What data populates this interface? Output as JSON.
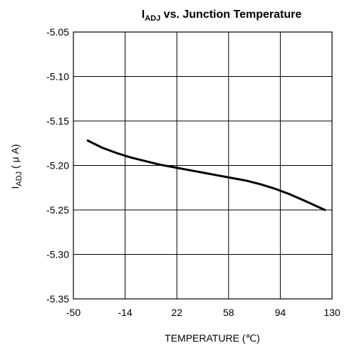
{
  "chart_data": {
    "type": "line",
    "title": {
      "main": "I",
      "subscript": "ADJ",
      "rest": " vs. Junction Temperature"
    },
    "xlabel": "TEMPERATURE (℃)",
    "ylabel": {
      "main": "I",
      "subscript": "ADJ",
      "rest": " ( μ A)"
    },
    "xlim": [
      -50,
      130
    ],
    "ylim": [
      -5.35,
      -5.05
    ],
    "x_ticks": [
      -50,
      -14,
      22,
      58,
      94,
      130
    ],
    "y_ticks": [
      -5.05,
      -5.1,
      -5.15,
      -5.2,
      -5.25,
      -5.3,
      -5.35
    ],
    "x_tick_labels": [
      "-50",
      "-14",
      "22",
      "58",
      "94",
      "130"
    ],
    "y_tick_labels": [
      "-5.05",
      "-5.10",
      "-5.15",
      "-5.20",
      "-5.25",
      "-5.30",
      "-5.35"
    ],
    "grid": true,
    "series": [
      {
        "x": [
          -40,
          -30,
          -20,
          -10,
          0,
          10,
          20,
          30,
          40,
          50,
          60,
          70,
          80,
          90,
          100,
          110,
          125
        ],
        "values": [
          -5.172,
          -5.18,
          -5.186,
          -5.191,
          -5.195,
          -5.199,
          -5.202,
          -5.205,
          -5.208,
          -5.211,
          -5.214,
          -5.217,
          -5.221,
          -5.226,
          -5.232,
          -5.239,
          -5.25
        ]
      }
    ]
  }
}
